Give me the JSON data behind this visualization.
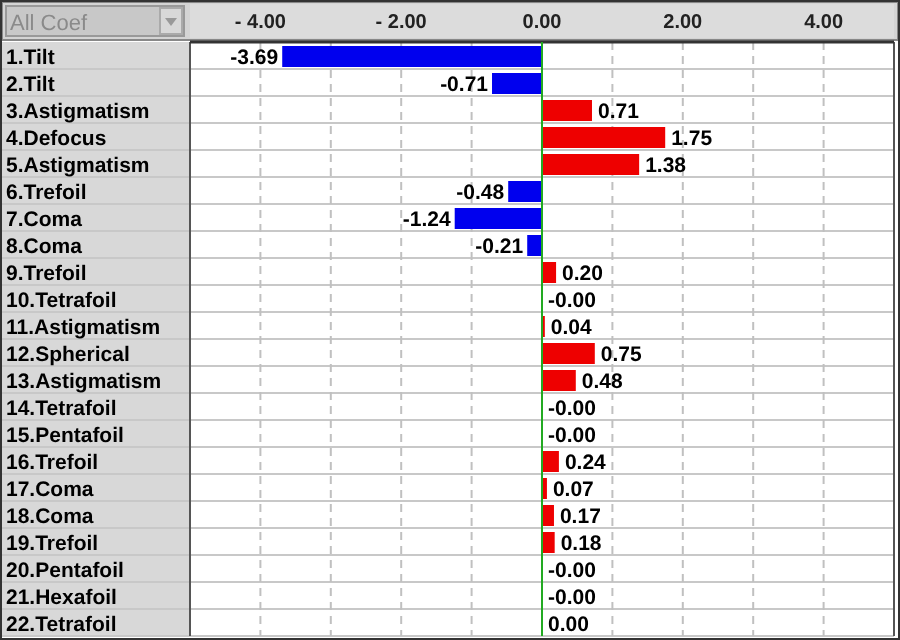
{
  "chart_data": {
    "type": "bar",
    "orientation": "horizontal",
    "annotations": [
      "All Coef"
    ],
    "categories": [
      "1.Tilt",
      "2.Tilt",
      "3.Astigmatism",
      "4.Defocus",
      "5.Astigmatism",
      "6.Trefoil",
      "7.Coma",
      "8.Coma",
      "9.Trefoil",
      "10.Tetrafoil",
      "11.Astigmatism",
      "12.Spherical",
      "13.Astigmatism",
      "14.Tetrafoil",
      "15.Pentafoil",
      "16.Trefoil",
      "17.Coma",
      "18.Coma",
      "19.Trefoil",
      "20.Pentafoil",
      "21.Hexafoil",
      "22.Tetrafoil"
    ],
    "values": [
      -3.69,
      -0.71,
      0.71,
      1.75,
      1.38,
      -0.48,
      -1.24,
      -0.21,
      0.2,
      0,
      0.04,
      0.75,
      0.48,
      0,
      0,
      0.24,
      0.07,
      0.17,
      0.18,
      0,
      0,
      0
    ],
    "value_labels": [
      "-3.69",
      "-0.71",
      "0.71",
      "1.75",
      "1.38",
      "-0.48",
      "-1.24",
      "-0.21",
      "0.20",
      "-0.00",
      "0.04",
      "0.75",
      "0.48",
      "-0.00",
      "-0.00",
      "0.24",
      "0.07",
      "0.17",
      "0.18",
      "-0.00",
      "-0.00",
      "0.00"
    ],
    "colors": [
      "#0000ee",
      "#0000ee",
      "#ee0000",
      "#ee0000",
      "#ee0000",
      "#0000ee",
      "#0000ee",
      "#0000ee",
      "#ee0000",
      "#ee0000",
      "#ee0000",
      "#ee0000",
      "#ee0000",
      "#ee0000",
      "#ee0000",
      "#ee0000",
      "#ee0000",
      "#ee0000",
      "#ee0000",
      "#ee0000",
      "#ee0000",
      "#ee0000"
    ],
    "xlim": [
      -5,
      5
    ],
    "xticks": [
      {
        "value": -4,
        "label": "- 4.00"
      },
      {
        "value": -3,
        "label": null
      },
      {
        "value": -2,
        "label": "- 2.00"
      },
      {
        "value": -1,
        "label": null
      },
      {
        "value": 0,
        "label": "0.00"
      },
      {
        "value": 1,
        "label": null
      },
      {
        "value": 2,
        "label": "2.00"
      },
      {
        "value": 3,
        "label": null
      },
      {
        "value": 4,
        "label": "4.00"
      }
    ],
    "ref_lines": [
      {
        "axis": "x",
        "value": 0,
        "color": "#22aa22"
      }
    ],
    "grid": "x"
  }
}
